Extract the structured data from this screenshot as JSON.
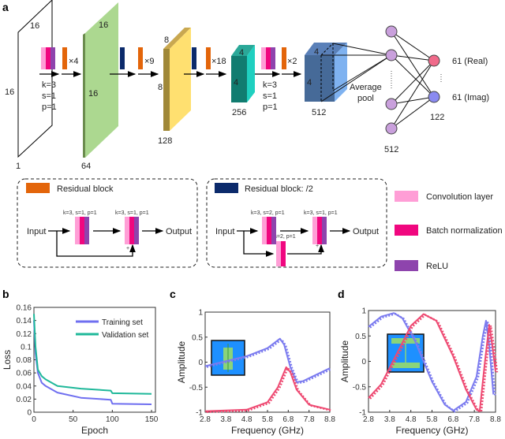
{
  "panel_labels": {
    "a": "a",
    "b": "b",
    "c": "c",
    "d": "d"
  },
  "network": {
    "input": {
      "w": "16",
      "h": "16",
      "ch": "1"
    },
    "stage1": {
      "w": "16",
      "h": "16",
      "ch": "64",
      "repeat": "×4"
    },
    "stage2": {
      "w": "8",
      "h": "8",
      "ch": "128",
      "repeat": "×9"
    },
    "stage3": {
      "w": "4",
      "h": "4",
      "ch": "256",
      "repeat": "×18"
    },
    "stage4": {
      "w": "4",
      "h": "4",
      "ch": "512",
      "repeat": "×2"
    },
    "conv_params": [
      "k=3",
      "s=1",
      "p=1"
    ],
    "avgpool": [
      "Average",
      "pool"
    ],
    "fc_hidden": "512",
    "fc_out": "122",
    "out_real": "61 (Real)",
    "out_imag": "61 (Imag)",
    "colors": {
      "conv": "#ff9ed6",
      "bn": "#f0077f",
      "relu": "#8e44ad",
      "res": "#e3650a",
      "res2": "#0b2a6b"
    }
  },
  "blocks": {
    "res": {
      "title": "Residual block",
      "input": "Input",
      "output": "Output",
      "p1": "k=3, s=1, p=1",
      "p2": "k=3, s=1, p=1",
      "plus": "+"
    },
    "res2": {
      "title": "Residual block: /2",
      "input": "Input",
      "output": "Output",
      "p1": "k=3, s=2, p=1",
      "p2": "k=3, s=1, p=1",
      "p3": "k=1, s=2, p=1",
      "plus": "+"
    }
  },
  "legend": [
    "Convolution layer",
    "Batch normalization",
    "ReLU"
  ],
  "chart_data": [
    {
      "type": "line",
      "xlabel": "Epoch",
      "ylabel": "Loss",
      "xlim": [
        0,
        155
      ],
      "ylim": [
        0,
        0.16
      ],
      "xticks": [
        0,
        50,
        100,
        150
      ],
      "yticks": [
        0,
        0.02,
        0.04,
        0.06,
        0.08,
        0.1,
        0.12,
        0.14,
        0.16
      ],
      "xtick_labels": [
        "0",
        "50",
        "100",
        "150"
      ],
      "ytick_labels": [
        "0",
        "0.02",
        "0.04",
        "0.06",
        "0.08",
        "0.1",
        "0.12",
        "0.14",
        "0.16"
      ],
      "legend": "top-right",
      "series": [
        {
          "name": "Training set",
          "color": "#6f6ff0",
          "x": [
            0,
            2,
            5,
            10,
            15,
            30,
            60,
            98,
            100,
            150
          ],
          "y": [
            0.14,
            0.09,
            0.06,
            0.045,
            0.04,
            0.03,
            0.022,
            0.019,
            0.013,
            0.012
          ]
        },
        {
          "name": "Validation set",
          "color": "#1fb89a",
          "x": [
            0,
            2,
            5,
            10,
            15,
            30,
            60,
            98,
            100,
            150
          ],
          "y": [
            0.15,
            0.1,
            0.065,
            0.055,
            0.05,
            0.04,
            0.036,
            0.033,
            0.029,
            0.028
          ]
        }
      ]
    },
    {
      "type": "line",
      "xlabel": "Frequency (GHz)",
      "ylabel": "Amplitude",
      "xlim": [
        2.8,
        8.8
      ],
      "ylim": [
        -1,
        1
      ],
      "xticks": [
        2.8,
        3.8,
        4.8,
        5.8,
        6.8,
        7.8,
        8.8
      ],
      "yticks": [
        -1,
        -0.5,
        0,
        0.5,
        1
      ],
      "xtick_labels": [
        "2.8",
        "3.8",
        "4.8",
        "5.8",
        "6.8",
        "7.8",
        "8.8"
      ],
      "ytick_labels": [
        "-1",
        "-0.5",
        "0",
        "0.5",
        "1"
      ],
      "inset": "single-bar",
      "series": [
        {
          "color": "#7b7bef",
          "x": [
            2.8,
            3.8,
            4.8,
            5.8,
            6.4,
            6.6,
            6.9,
            7.2,
            7.5,
            8.0,
            8.8
          ],
          "y": [
            -0.08,
            0.02,
            0.12,
            0.28,
            0.47,
            0.35,
            -0.1,
            -0.4,
            -0.38,
            -0.28,
            -0.12
          ]
        },
        {
          "color": "#ee4a72",
          "x": [
            2.8,
            4.8,
            5.8,
            6.3,
            6.7,
            6.9,
            7.2,
            7.8,
            8.8
          ],
          "y": [
            -0.98,
            -0.95,
            -0.8,
            -0.5,
            -0.1,
            -0.2,
            -0.55,
            -0.85,
            -0.95
          ]
        }
      ]
    },
    {
      "type": "line",
      "xlabel": "Frequency (GHz)",
      "ylabel": "Amplitude",
      "xlim": [
        2.8,
        8.8
      ],
      "ylim": [
        -1,
        1
      ],
      "xticks": [
        2.8,
        3.8,
        4.8,
        5.8,
        6.8,
        7.8,
        8.8
      ],
      "yticks": [
        -1,
        -0.5,
        0,
        0.5,
        1
      ],
      "xtick_labels": [
        "2.8",
        "3.8",
        "4.8",
        "5.8",
        "6.8",
        "7.8",
        "8.8"
      ],
      "ytick_labels": [
        "-1",
        "-0.5",
        "0",
        "0.5",
        "1"
      ],
      "inset": "I-shape",
      "series": [
        {
          "color": "#7b7bef",
          "x": [
            2.8,
            3.4,
            4.0,
            4.4,
            5.0,
            5.8,
            6.4,
            6.8,
            7.4,
            7.9,
            8.2,
            8.35,
            8.5,
            8.7
          ],
          "y": [
            0.68,
            0.88,
            0.95,
            0.85,
            0.4,
            -0.4,
            -0.85,
            -0.97,
            -0.8,
            -0.3,
            0.5,
            0.8,
            0.3,
            -0.65
          ]
        },
        {
          "color": "#ee4a72",
          "x": [
            2.8,
            3.4,
            4.2,
            4.8,
            5.4,
            6.0,
            6.8,
            7.4,
            7.9,
            8.05,
            8.3,
            8.5,
            8.65,
            8.8
          ],
          "y": [
            -0.72,
            -0.45,
            0.2,
            0.7,
            0.93,
            0.8,
            0.1,
            -0.55,
            -0.95,
            -0.98,
            0,
            0.72,
            0.3,
            -0.2
          ]
        }
      ]
    }
  ]
}
